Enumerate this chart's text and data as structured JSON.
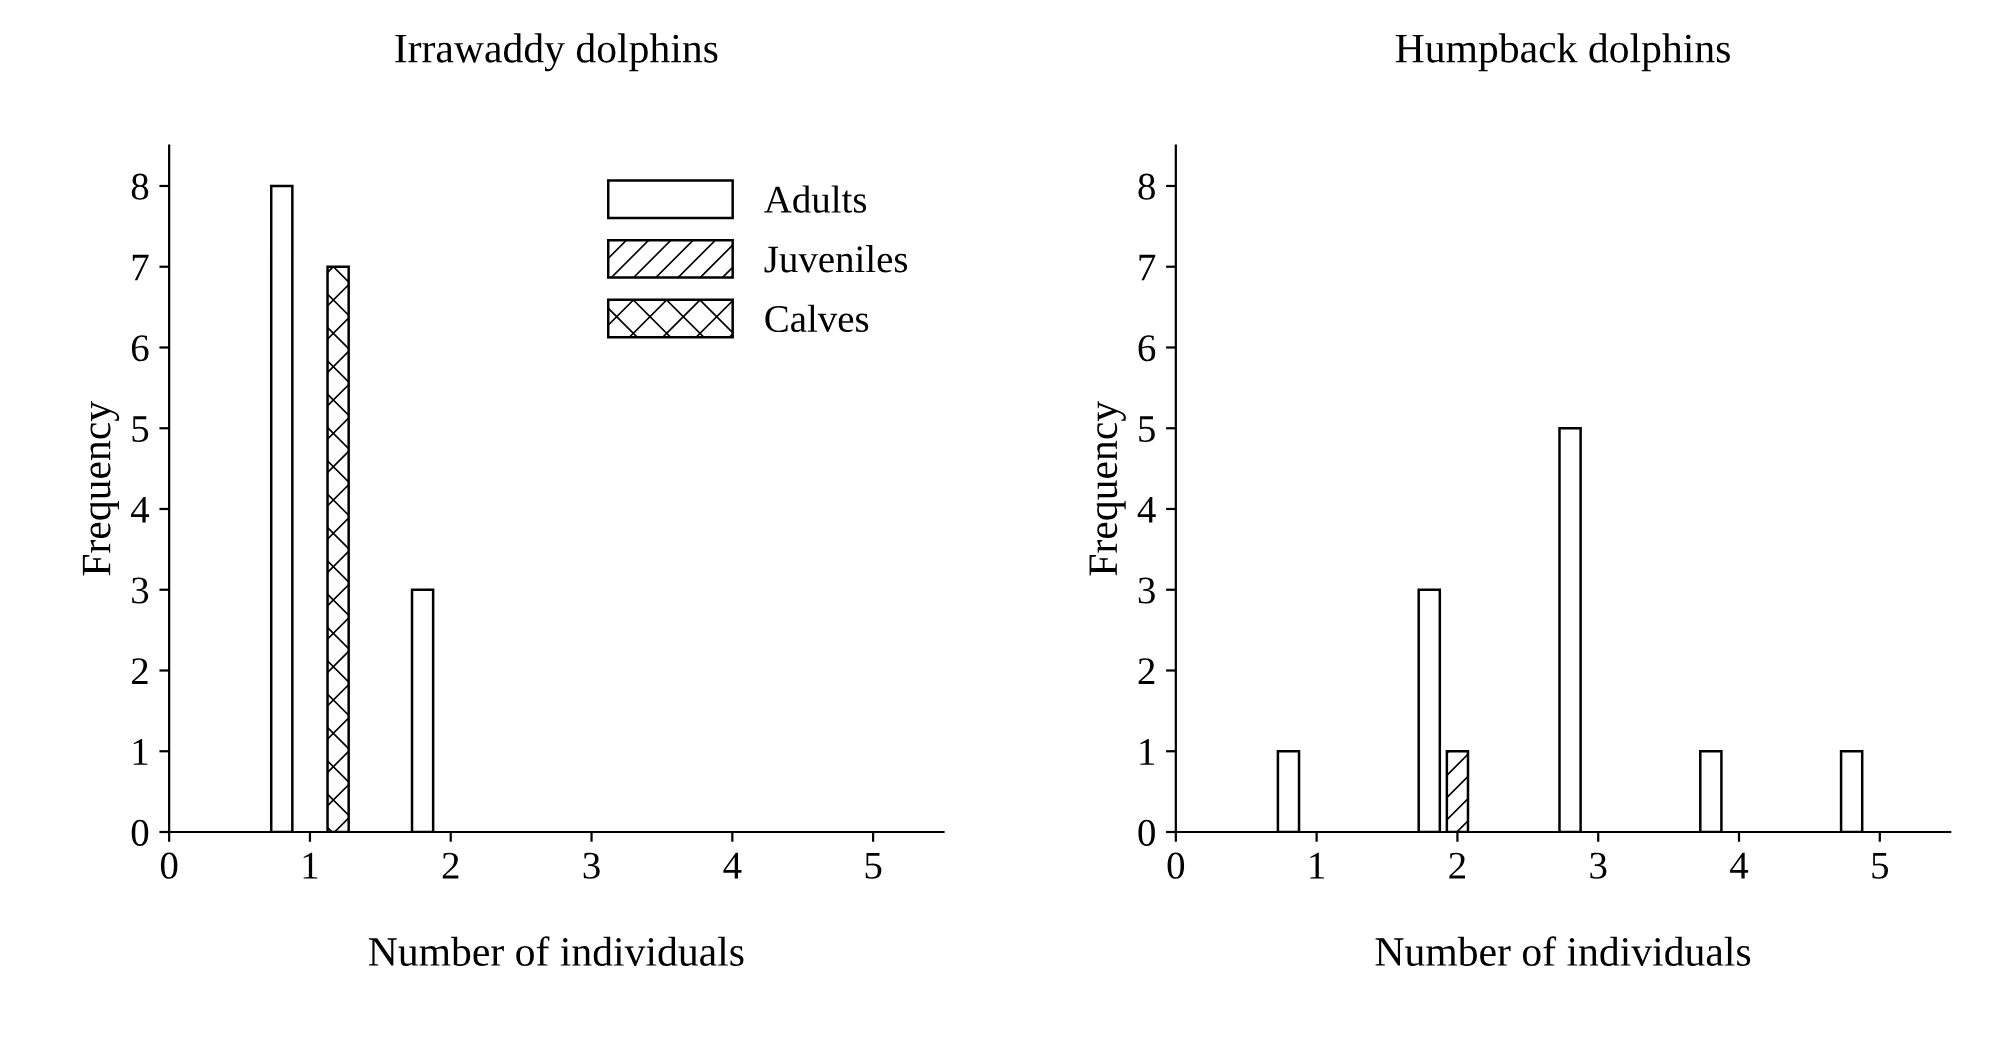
{
  "chart_data": [
    {
      "type": "bar",
      "title": "Irrawaddy dolphins",
      "xlabel": "Number of individuals",
      "ylabel": "Frequency",
      "x": [
        1,
        2
      ],
      "series": [
        {
          "name": "Adults",
          "color": "#ffffff",
          "values": [
            8,
            3
          ]
        },
        {
          "name": "Juveniles",
          "color": "#000000",
          "values": [
            null,
            null
          ]
        },
        {
          "name": "Calves",
          "color": "#000000",
          "values": [
            7,
            null
          ]
        }
      ],
      "xlim": [
        0,
        5.5
      ],
      "xticks": [
        0,
        1,
        2,
        3,
        4,
        5
      ],
      "ylim": [
        0,
        8.5
      ],
      "yticks": [
        0,
        1,
        2,
        3,
        4,
        5,
        6,
        7,
        8
      ],
      "legend": "top right",
      "grid": false
    },
    {
      "type": "bar",
      "title": "Humpback dolphins",
      "xlabel": "Number of individuals",
      "ylabel": "Frequency",
      "x": [
        1,
        2,
        3,
        4,
        5
      ],
      "series": [
        {
          "color": "#ffffff",
          "values": [
            1,
            3,
            5,
            1,
            1
          ]
        },
        {
          "color": "#000000",
          "values": [
            null,
            1,
            null,
            null,
            null
          ]
        }
      ],
      "xlim": [
        0,
        5.5
      ],
      "xticks": [
        0,
        1,
        2,
        3,
        4,
        5
      ],
      "ylim": [
        0,
        8.5
      ],
      "yticks": [
        0,
        1,
        2,
        3,
        4,
        5,
        6,
        7,
        8
      ],
      "legend": false,
      "grid": false
    }
  ]
}
